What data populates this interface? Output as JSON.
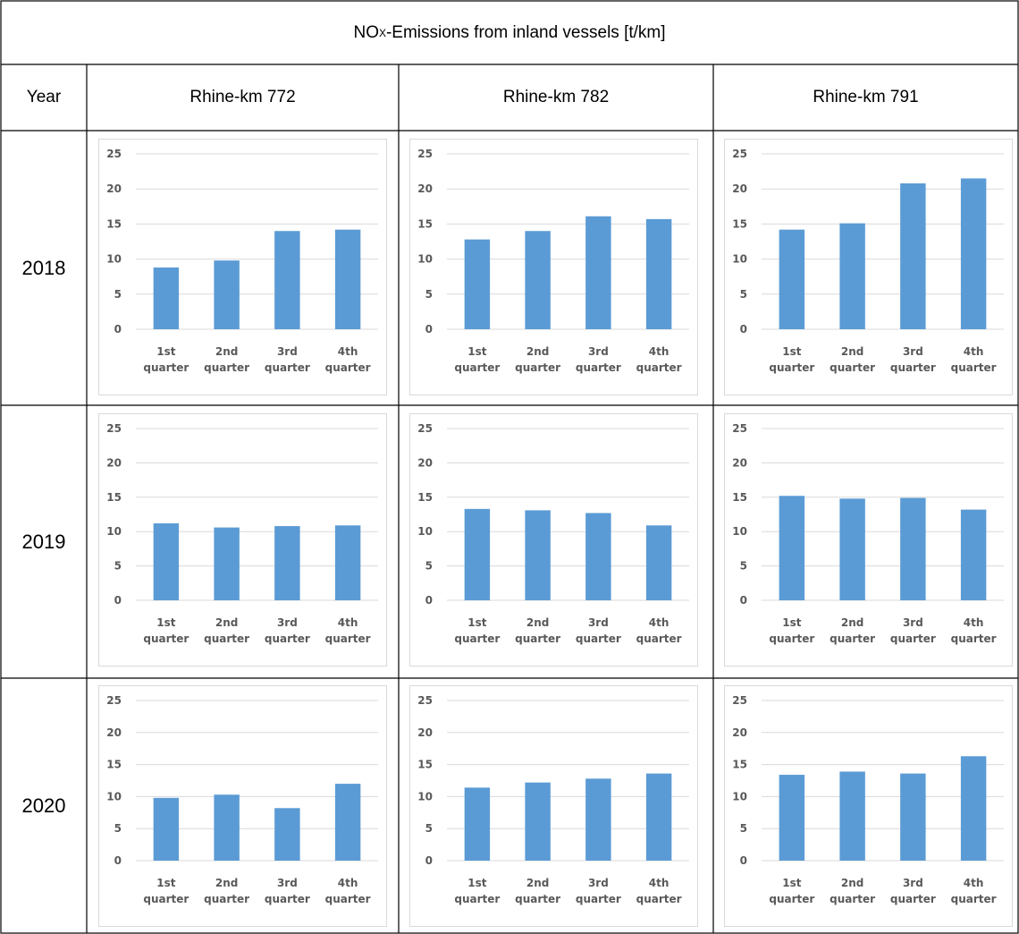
{
  "title_main": "NO",
  "title_sub": "X",
  "title_rest": "-Emissions from inland vessels [t/km]",
  "header": {
    "year": "Year",
    "columns": [
      "Rhine-km 772",
      "Rhine-km 782",
      "Rhine-km 791"
    ]
  },
  "years": [
    "2018",
    "2019",
    "2020"
  ],
  "colors": {
    "bar": "#5b9bd5",
    "grid": "#d9d9d9",
    "border": "#000000",
    "chart_border": "#d9d9d9",
    "axis_text": "#595959"
  },
  "chart_data": [
    {
      "type": "bar",
      "year": "2018",
      "location": "Rhine-km 772",
      "categories": [
        "1st quarter",
        "2nd quarter",
        "3rd quarter",
        "4th quarter"
      ],
      "values": [
        8.8,
        9.8,
        14.0,
        14.2
      ],
      "yticks": [
        0,
        5,
        10,
        15,
        20,
        25
      ],
      "ylim": [
        0,
        25
      ],
      "grid": true,
      "legend": "none"
    },
    {
      "type": "bar",
      "year": "2018",
      "location": "Rhine-km 782",
      "categories": [
        "1st quarter",
        "2nd quarter",
        "3rd quarter",
        "4th quarter"
      ],
      "values": [
        12.8,
        14.0,
        16.1,
        15.7
      ],
      "yticks": [
        0,
        5,
        10,
        15,
        20,
        25
      ],
      "ylim": [
        0,
        25
      ],
      "grid": true,
      "legend": "none"
    },
    {
      "type": "bar",
      "year": "2018",
      "location": "Rhine-km 791",
      "categories": [
        "1st quarter",
        "2nd quarter",
        "3rd quarter",
        "4th quarter"
      ],
      "values": [
        14.2,
        15.1,
        20.8,
        21.5
      ],
      "yticks": [
        0,
        5,
        10,
        15,
        20,
        25
      ],
      "ylim": [
        0,
        25
      ],
      "grid": true,
      "legend": "none"
    },
    {
      "type": "bar",
      "year": "2019",
      "location": "Rhine-km 772",
      "categories": [
        "1st quarter",
        "2nd quarter",
        "3rd quarter",
        "4th quarter"
      ],
      "values": [
        11.2,
        10.6,
        10.8,
        10.9
      ],
      "yticks": [
        0,
        5,
        10,
        15,
        20,
        25
      ],
      "ylim": [
        0,
        25
      ],
      "grid": true,
      "legend": "none"
    },
    {
      "type": "bar",
      "year": "2019",
      "location": "Rhine-km 782",
      "categories": [
        "1st quarter",
        "2nd quarter",
        "3rd quarter",
        "4th quarter"
      ],
      "values": [
        13.3,
        13.1,
        12.7,
        10.9
      ],
      "yticks": [
        0,
        5,
        10,
        15,
        20,
        25
      ],
      "ylim": [
        0,
        25
      ],
      "grid": true,
      "legend": "none"
    },
    {
      "type": "bar",
      "year": "2019",
      "location": "Rhine-km 791",
      "categories": [
        "1st quarter",
        "2nd quarter",
        "3rd quarter",
        "4th quarter"
      ],
      "values": [
        15.2,
        14.8,
        14.9,
        13.2
      ],
      "yticks": [
        0,
        5,
        10,
        15,
        20,
        25
      ],
      "ylim": [
        0,
        25
      ],
      "grid": true,
      "legend": "none"
    },
    {
      "type": "bar",
      "year": "2020",
      "location": "Rhine-km 772",
      "categories": [
        "1st quarter",
        "2nd quarter",
        "3rd quarter",
        "4th quarter"
      ],
      "values": [
        9.8,
        10.3,
        8.2,
        12.0
      ],
      "yticks": [
        0,
        5,
        10,
        15,
        20,
        25
      ],
      "ylim": [
        0,
        25
      ],
      "grid": true,
      "legend": "none"
    },
    {
      "type": "bar",
      "year": "2020",
      "location": "Rhine-km 782",
      "categories": [
        "1st quarter",
        "2nd quarter",
        "3rd quarter",
        "4th quarter"
      ],
      "values": [
        11.4,
        12.2,
        12.8,
        13.6
      ],
      "yticks": [
        0,
        5,
        10,
        15,
        20,
        25
      ],
      "ylim": [
        0,
        25
      ],
      "grid": true,
      "legend": "none"
    },
    {
      "type": "bar",
      "year": "2020",
      "location": "Rhine-km 791",
      "categories": [
        "1st quarter",
        "2nd quarter",
        "3rd quarter",
        "4th quarter"
      ],
      "values": [
        13.4,
        13.9,
        13.6,
        16.3
      ],
      "yticks": [
        0,
        5,
        10,
        15,
        20,
        25
      ],
      "ylim": [
        0,
        25
      ],
      "grid": true,
      "legend": "none"
    }
  ]
}
